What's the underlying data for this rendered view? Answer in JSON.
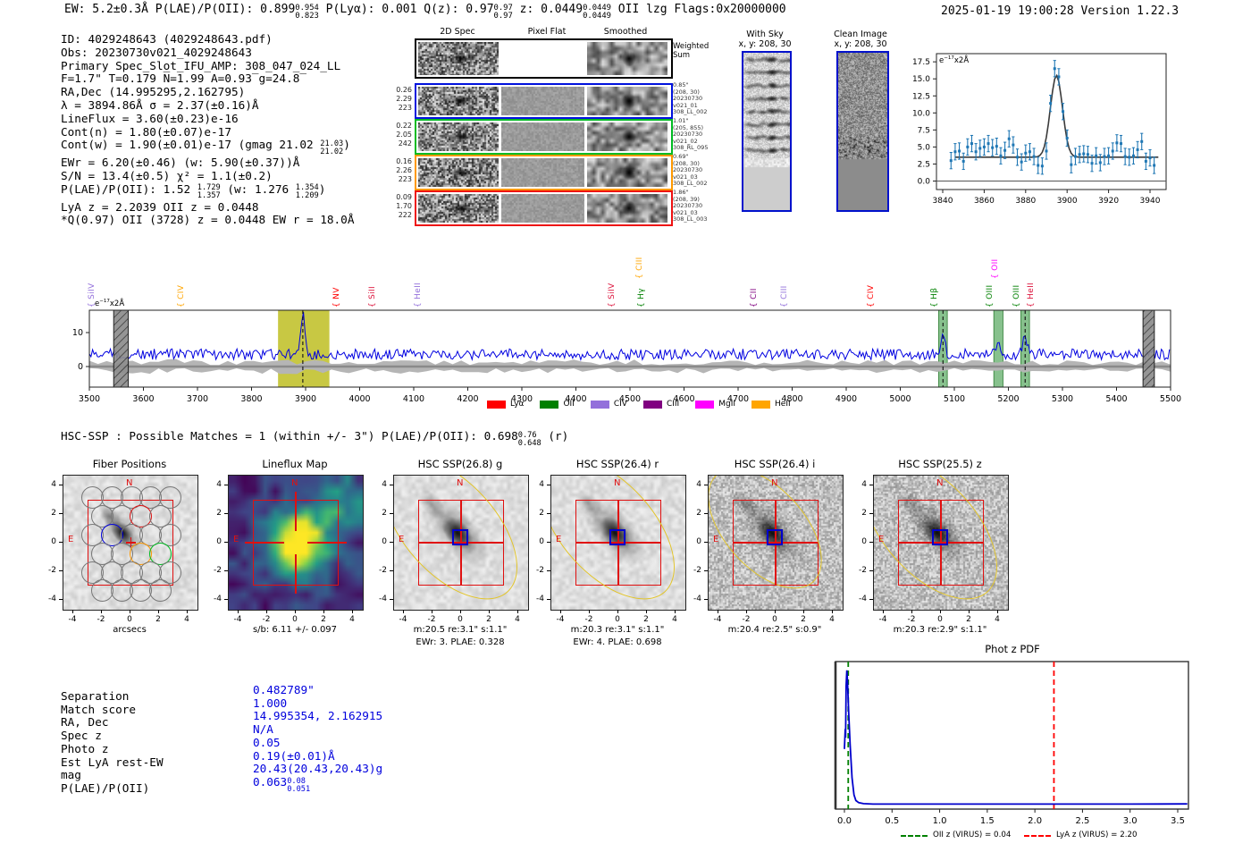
{
  "meta": {
    "timestamp": "2025-01-19 19:00:28",
    "version": "Version 1.22.3"
  },
  "header": {
    "segments": [
      {
        "t": "EW: 5.2±0.3Å  P(LAE)/P(OII): 0.899"
      },
      {
        "f": [
          "0.954",
          "0.823"
        ]
      },
      {
        "t": "  P(Lyα): 0.001  Q(z): 0.97"
      },
      {
        "f": [
          "0.97",
          "0.97"
        ]
      },
      {
        "t": "  z: 0.0449"
      },
      {
        "f": [
          "0.0449",
          "0.0449"
        ]
      },
      {
        "t": " OII   lzg  Flags:0x20000000"
      }
    ]
  },
  "info_block": {
    "lines": [
      [
        {
          "t": "ID: 4029248643 (4029248643.pdf)"
        }
      ],
      [
        {
          "t": "Obs: 20230730v021_4029248643"
        }
      ],
      [
        {
          "t": "Primary Spec_Slot_IFU_AMP: 308_047_024_LL"
        }
      ],
      [
        {
          "t": "F=1.7\"  T=0.179  N̅=1.99  A=0.93̅  g=24.8̅"
        }
      ],
      [
        {
          "t": "RA,Dec (14.995295,2.162795)"
        }
      ],
      [
        {
          "t": "λ = 3894.86Å  σ = 2.37(±0.16)Å"
        }
      ],
      [
        {
          "t": "LineFlux = 3.60(±0.23)e-16"
        }
      ],
      [
        {
          "t": "Cont(n) = 1.80(±0.07)e-17"
        }
      ],
      [
        {
          "t": "Cont(w) = 1.90(±0.01)e-17 (gmag 21.02 "
        },
        {
          "f": [
            "21.03",
            "21.02"
          ]
        },
        {
          "t": ")"
        }
      ],
      [
        {
          "t": "EWr = 6.20(±0.46) (w: 5.90(±0.37))Å"
        }
      ],
      [
        {
          "t": "S/N = 13.4(±0.5)  χ² = 1.1(±0.2)"
        }
      ],
      [
        {
          "t": "P(LAE)/P(OII): 1.52 "
        },
        {
          "f": [
            "1.729",
            "1.357"
          ]
        },
        {
          "t": " (w: 1.276 "
        },
        {
          "f": [
            "1.354",
            "1.209"
          ]
        },
        {
          "t": ")"
        }
      ],
      [
        {
          "t": "LyA z = 2.2039  OII z = 0.0448"
        }
      ],
      [
        {
          "t": "*Q(0.97) OII (3728) z = 0.0448  EW r = 18.0Å"
        }
      ]
    ]
  },
  "spec2d": {
    "col_titles": [
      "2D Spec",
      "Pixel Flat",
      "Smoothed"
    ],
    "weighted_label": [
      "Weighted",
      "Sum"
    ],
    "rows": [
      {
        "color": "#0011dd",
        "left": [
          "0.26",
          "2.29",
          "223"
        ],
        "right": [
          "0.85\"",
          "(208, 30)",
          "20230730",
          "v021_01",
          "308_LL_002"
        ]
      },
      {
        "color": "#00bb22",
        "left": [
          "0.22",
          "2.05",
          "242"
        ],
        "right": [
          "1.01\"",
          "(205, 855)",
          "20230730",
          "v021_02",
          "308_RL_095"
        ]
      },
      {
        "color": "#ff9900",
        "left": [
          "0.16",
          "2.26",
          "223"
        ],
        "right": [
          "0.69\"",
          "(208, 30)",
          "20230730",
          "v021_03",
          "308_LL_002"
        ]
      },
      {
        "color": "#ee1111",
        "left": [
          "0.09",
          "1.70",
          "222"
        ],
        "right": [
          "1.86\"",
          "(208, 39)",
          "20230730",
          "v021_03",
          "308_LL_003"
        ]
      }
    ]
  },
  "sky_panels": [
    {
      "title": "With Sky",
      "subtitle": "x, y: 208, 30"
    },
    {
      "title": "Clean Image",
      "subtitle": "x, y: 208, 30"
    }
  ],
  "hsc_match_line": {
    "segments": [
      {
        "t": "HSC-SSP : Possible Matches = 1 (within +/- 3\")  P(LAE)/P(OII): 0.698"
      },
      {
        "f": [
          "0.76",
          "0.648"
        ]
      },
      {
        "t": " (r)"
      }
    ]
  },
  "cutouts": {
    "ytick_labels": [
      "4",
      "2",
      "0",
      "-2",
      "-4"
    ],
    "xtick_labels": [
      "-4",
      "-2",
      "0",
      "2",
      "4"
    ],
    "compass_n": "N",
    "compass_e": "E",
    "panels": [
      {
        "type": "fiber",
        "title": "Fiber Positions",
        "xlabel": "arcsecs"
      },
      {
        "type": "lineflux",
        "title": "Lineflux Map",
        "xlabel": "s/b: 6.11 +/- 0.097"
      },
      {
        "type": "hsc",
        "band": "g",
        "title": "HSC SSP(26.8) g",
        "xlabel": "m:20.5  re:3.1\"  s:1.1\"",
        "caption": "EWr: 3. PLAE: 0.328"
      },
      {
        "type": "hsc",
        "band": "r",
        "title": "HSC SSP(26.4) r",
        "xlabel": "m:20.3  re:3.1\"  s:1.1\"",
        "caption": "EWr: 4. PLAE: 0.698"
      },
      {
        "type": "hsc",
        "band": "i",
        "title": "HSC SSP(26.4) i",
        "xlabel": "m:20.4  re:2.5\"  s:0.9\""
      },
      {
        "type": "hsc",
        "band": "z",
        "title": "HSC SSP(25.5) z",
        "xlabel": "m:20.3  re:2.9\"  s:1.1\""
      }
    ]
  },
  "match_table": {
    "rows": [
      {
        "label": "Separation",
        "value": [
          {
            "t": "0.482789\""
          }
        ]
      },
      {
        "label": "Match score",
        "value": [
          {
            "t": "1.000"
          }
        ]
      },
      {
        "label": "RA, Dec",
        "value": [
          {
            "t": "14.995354, 2.162915"
          }
        ]
      },
      {
        "label": "Spec z",
        "value": [
          {
            "t": "N/A"
          }
        ]
      },
      {
        "label": "Photo z",
        "value": [
          {
            "t": "0.05"
          }
        ]
      },
      {
        "label": "Est LyA rest-EW",
        "value": [
          {
            "t": "0.19(±0.01)Å"
          }
        ]
      },
      {
        "label": "mag",
        "value": [
          {
            "t": "20.43(20.43,20.43)g"
          }
        ]
      },
      {
        "label": "P(LAE)/P(OII)",
        "value": [
          {
            "t": "0.063"
          },
          {
            "f": [
              "0.08",
              "0.051"
            ]
          }
        ]
      }
    ],
    "value_color": "#0000dd"
  },
  "chart_data": [
    {
      "name": "line_fit_plot",
      "type": "scatter",
      "ylabel_note": [
        {
          "t": "e"
        },
        {
          "s": "−17"
        },
        {
          "t": "x2Å"
        }
      ],
      "x_start": 3844,
      "x_step": 2,
      "scatter_y": [
        3.0,
        4.3,
        4.4,
        2.9,
        5.0,
        5.5,
        4.3,
        4.8,
        5.0,
        5.5,
        4.9,
        5.1,
        3.7,
        4.5,
        6.2,
        5.3,
        3.5,
        2.8,
        4.1,
        4.3,
        3.6,
        2.3,
        2.2,
        4.4,
        11.4,
        16.5,
        15.3,
        10.2,
        6.3,
        2.4,
        3.6,
        3.9,
        4.0,
        3.9,
        2.6,
        3.7,
        2.7,
        3.6,
        3.7,
        4.4,
        5.6,
        5.5,
        3.6,
        3.5,
        3.7,
        4.6,
        5.8,
        2.9,
        3.4,
        2.3
      ],
      "yerr": 1.2,
      "fit": {
        "center": 3894.86,
        "sigma": 2.9,
        "amplitude": 12.0,
        "continuum": 3.5
      },
      "x_ticks": [
        3840,
        3860,
        3880,
        3900,
        3920,
        3940
      ],
      "y_ticks": [
        "0.0",
        "2.5",
        "5.0",
        "7.5",
        "10.0",
        "12.5",
        "15.0",
        "17.5"
      ],
      "xlim": [
        3837,
        3948
      ],
      "ylim": [
        -1.2,
        18.7
      ],
      "marker_color": "#1f77b4",
      "fit_color": "#3a3a3a"
    },
    {
      "name": "full_spectrum_plot",
      "type": "line",
      "ylabel_note": [
        {
          "t": "e"
        },
        {
          "s": "−17"
        },
        {
          "t": "x2Å"
        }
      ],
      "xlim": [
        3500,
        5500
      ],
      "x_tick_step": 100,
      "y_ticks": [
        0,
        10
      ],
      "baseline_flux": 3.6,
      "noise_amp": 1.6,
      "peaks": [
        {
          "x": 3894.86,
          "amp": 11.7,
          "sigma": 4.5
        },
        {
          "x": 5079,
          "amp": 4.6,
          "sigma": 4.0
        },
        {
          "x": 5181,
          "amp": 2.4,
          "sigma": 4.5
        },
        {
          "x": 5231,
          "amp": 5.4,
          "sigma": 4.0
        }
      ],
      "bands": [
        {
          "x0": 3545,
          "x1": 3572,
          "style": "hatch"
        },
        {
          "x0": 3849,
          "x1": 3944,
          "style": "yellow",
          "dashed_line": 3894.86
        },
        {
          "x0": 5071,
          "x1": 5087,
          "style": "green",
          "dashed_line": 5079
        },
        {
          "x0": 5173,
          "x1": 5190,
          "style": "green"
        },
        {
          "x0": 5223,
          "x1": 5239,
          "style": "green",
          "dashed_line": 5231
        },
        {
          "x0": 5449,
          "x1": 5470,
          "style": "hatch"
        }
      ],
      "line_labels": [
        {
          "name": "SiIV",
          "wave": 3520,
          "color": "#9370DB",
          "row": 0
        },
        {
          "name": "CIV",
          "wave": 3686,
          "color": "#FFA500",
          "row": 0
        },
        {
          "name": "NV",
          "wave": 3973,
          "color": "#FF0000",
          "row": 0
        },
        {
          "name": "SiII",
          "wave": 4040,
          "color": "#DC143C",
          "row": 0
        },
        {
          "name": "HeII",
          "wave": 4124,
          "color": "#9370DB",
          "row": 0
        },
        {
          "name": "SiIV",
          "wave": 4483,
          "color": "#DC143C",
          "row": 0
        },
        {
          "name": "CIII",
          "wave": 4534,
          "color": "#FFA500",
          "row": 1
        },
        {
          "name": "Hγ",
          "wave": 4537,
          "color": "#008000",
          "row": 0
        },
        {
          "name": "CII",
          "wave": 4746,
          "color": "#800080",
          "row": 0
        },
        {
          "name": "CIII",
          "wave": 4801,
          "color": "#9370DB",
          "row": 0
        },
        {
          "name": "CIV",
          "wave": 4962,
          "color": "#FF0000",
          "row": 0
        },
        {
          "name": "Hβ",
          "wave": 5079,
          "color": "#008000",
          "row": 0
        },
        {
          "name": "OIII",
          "wave": 5181,
          "color": "#008000",
          "row": 0
        },
        {
          "name": "OII",
          "wave": 5192,
          "color": "#FF00FF",
          "row": 1
        },
        {
          "name": "OIII",
          "wave": 5231,
          "color": "#008000",
          "row": 0
        },
        {
          "name": "HeII",
          "wave": 5258,
          "color": "#DC143C",
          "row": 0
        }
      ],
      "legend": [
        {
          "label": "Lyα",
          "color": "#FF0000"
        },
        {
          "label": "OII",
          "color": "#008000"
        },
        {
          "label": "CIV",
          "color": "#9370DB"
        },
        {
          "label": "CIII",
          "color": "#800080"
        },
        {
          "label": "MgII",
          "color": "#FF00FF"
        },
        {
          "label": "HeII",
          "color": "#FFA500"
        }
      ],
      "line_color": "#0000e0"
    },
    {
      "name": "photz_pdf_plot",
      "type": "line",
      "title": "Phot z PDF",
      "x_ticks": [
        "0.0",
        "0.5",
        "1.0",
        "1.5",
        "2.0",
        "2.5",
        "3.0",
        "3.5"
      ],
      "xlim": [
        -0.09,
        3.62
      ],
      "curve": [
        [
          0,
          0.42
        ],
        [
          0.008,
          0.56
        ],
        [
          0.012,
          0.5
        ],
        [
          0.018,
          0.86
        ],
        [
          0.025,
          0.97
        ],
        [
          0.032,
          0.9
        ],
        [
          0.045,
          0.67
        ],
        [
          0.06,
          0.45
        ],
        [
          0.08,
          0.22
        ],
        [
          0.1,
          0.1
        ],
        [
          0.12,
          0.06
        ],
        [
          0.15,
          0.045
        ],
        [
          0.2,
          0.038
        ],
        [
          0.3,
          0.035
        ],
        [
          0.6,
          0.035
        ],
        [
          1.0,
          0.035
        ],
        [
          1.5,
          0.035
        ],
        [
          2.0,
          0.035
        ],
        [
          2.5,
          0.035
        ],
        [
          3.0,
          0.035
        ],
        [
          3.6,
          0.036
        ]
      ],
      "vlines": [
        {
          "x": 0.04,
          "color": "#008000",
          "label": "OII z (VIRUS) = 0.04"
        },
        {
          "x": 2.2,
          "color": "#ff0000",
          "label": "LyA z (VIRUS) = 2.20"
        }
      ],
      "line_color": "#0000cc"
    }
  ]
}
